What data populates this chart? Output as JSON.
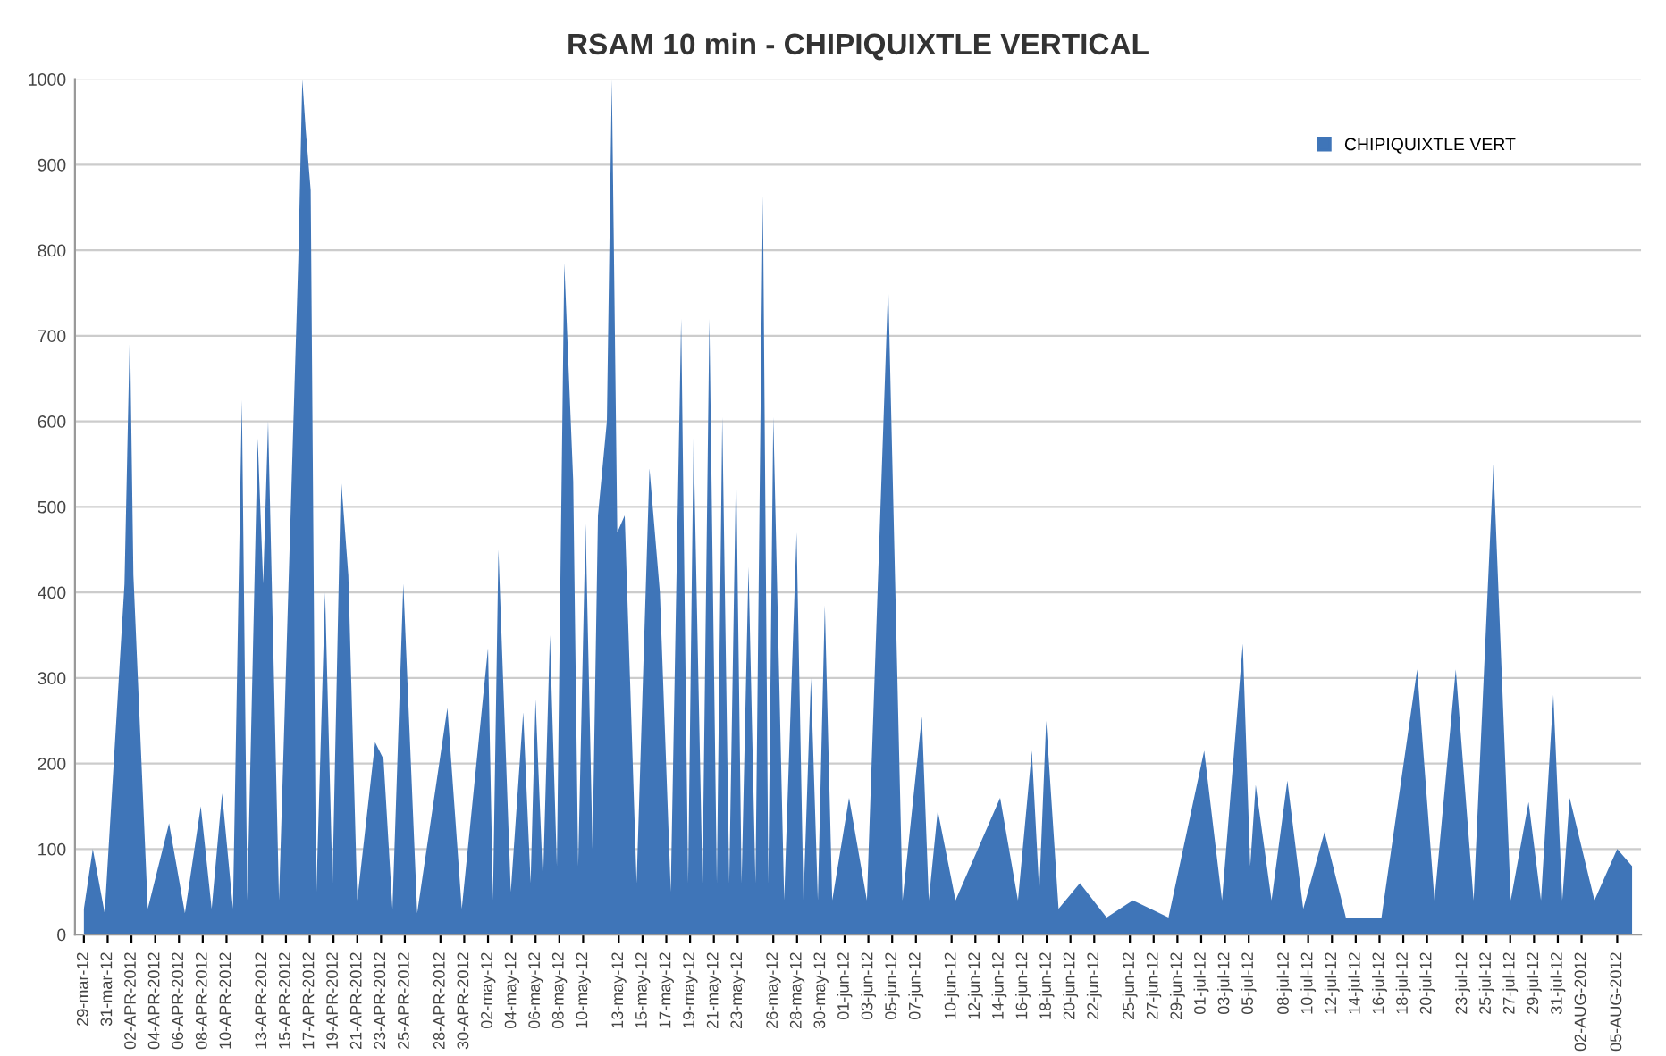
{
  "chart_data": {
    "type": "area",
    "title": "RSAM 10 min - CHIPIQUIXTLE VERTICAL",
    "xlim": [
      "2012-03-28T06:00",
      "2012-08-07T00:00"
    ],
    "ylim": [
      0,
      1000
    ],
    "yticks": [
      0,
      100,
      200,
      300,
      400,
      500,
      600,
      700,
      800,
      900,
      1000
    ],
    "xticks": [
      {
        "value": "2012-03-29",
        "label": "29-mar-12"
      },
      {
        "value": "2012-03-31",
        "label": "31-mar-12"
      },
      {
        "value": "2012-04-02",
        "label": "02-APR-2012"
      },
      {
        "value": "2012-04-04",
        "label": "04-APR-2012"
      },
      {
        "value": "2012-04-06",
        "label": "06-APR-2012"
      },
      {
        "value": "2012-04-08",
        "label": "08-APR-2012"
      },
      {
        "value": "2012-04-10",
        "label": "10-APR-2012"
      },
      {
        "value": "2012-04-13",
        "label": "13-APR-2012"
      },
      {
        "value": "2012-04-15",
        "label": "15-APR-2012"
      },
      {
        "value": "2012-04-17",
        "label": "17-APR-2012"
      },
      {
        "value": "2012-04-19",
        "label": "19-APR-2012"
      },
      {
        "value": "2012-04-21",
        "label": "21-APR-2012"
      },
      {
        "value": "2012-04-23",
        "label": "23-APR-2012"
      },
      {
        "value": "2012-04-25",
        "label": "25-APR-2012"
      },
      {
        "value": "2012-04-28",
        "label": "28-APR-2012"
      },
      {
        "value": "2012-04-30",
        "label": "30-APR-2012"
      },
      {
        "value": "2012-05-02",
        "label": "02-may-12"
      },
      {
        "value": "2012-05-04",
        "label": "04-may-12"
      },
      {
        "value": "2012-05-06",
        "label": "06-may-12"
      },
      {
        "value": "2012-05-08",
        "label": "08-may-12"
      },
      {
        "value": "2012-05-10",
        "label": "10-may-12"
      },
      {
        "value": "2012-05-13",
        "label": "13-may-12"
      },
      {
        "value": "2012-05-15",
        "label": "15-may-12"
      },
      {
        "value": "2012-05-17",
        "label": "17-may-12"
      },
      {
        "value": "2012-05-19",
        "label": "19-may-12"
      },
      {
        "value": "2012-05-21",
        "label": "21-may-12"
      },
      {
        "value": "2012-05-23",
        "label": "23-may-12"
      },
      {
        "value": "2012-05-26",
        "label": "26-may-12"
      },
      {
        "value": "2012-05-28",
        "label": "28-may-12"
      },
      {
        "value": "2012-05-30",
        "label": "30-may-12"
      },
      {
        "value": "2012-06-01",
        "label": "01-jun-12"
      },
      {
        "value": "2012-06-03",
        "label": "03-jun-12"
      },
      {
        "value": "2012-06-05",
        "label": "05-jun-12"
      },
      {
        "value": "2012-06-07",
        "label": "07-jun-12"
      },
      {
        "value": "2012-06-10",
        "label": "10-jun-12"
      },
      {
        "value": "2012-06-12",
        "label": "12-jun-12"
      },
      {
        "value": "2012-06-14",
        "label": "14-jun-12"
      },
      {
        "value": "2012-06-16",
        "label": "16-jun-12"
      },
      {
        "value": "2012-06-18",
        "label": "18-jun-12"
      },
      {
        "value": "2012-06-20",
        "label": "20-jun-12"
      },
      {
        "value": "2012-06-22",
        "label": "22-jun-12"
      },
      {
        "value": "2012-06-25",
        "label": "25-jun-12"
      },
      {
        "value": "2012-06-27",
        "label": "27-jun-12"
      },
      {
        "value": "2012-06-29",
        "label": "29-jun-12"
      },
      {
        "value": "2012-07-01",
        "label": "01-jul-12"
      },
      {
        "value": "2012-07-03",
        "label": "03-jul-12"
      },
      {
        "value": "2012-07-05",
        "label": "05-jul-12"
      },
      {
        "value": "2012-07-08",
        "label": "08-jul-12"
      },
      {
        "value": "2012-07-10",
        "label": "10-jul-12"
      },
      {
        "value": "2012-07-12",
        "label": "12-jul-12"
      },
      {
        "value": "2012-07-14",
        "label": "14-jul-12"
      },
      {
        "value": "2012-07-16",
        "label": "16-jul-12"
      },
      {
        "value": "2012-07-18",
        "label": "18-jul-12"
      },
      {
        "value": "2012-07-20",
        "label": "20-jul-12"
      },
      {
        "value": "2012-07-23",
        "label": "23-jul-12"
      },
      {
        "value": "2012-07-25",
        "label": "25-jul-12"
      },
      {
        "value": "2012-07-27",
        "label": "27-jul-12"
      },
      {
        "value": "2012-07-29",
        "label": "29-jul-12"
      },
      {
        "value": "2012-07-31",
        "label": "31-jul-12"
      },
      {
        "value": "2012-08-02",
        "label": "02-AUG-2012"
      },
      {
        "value": "2012-08-05",
        "label": "05-AUG-2012"
      }
    ],
    "grid": "y",
    "legend": "top right",
    "series": [
      {
        "name": "CHIPIQUIXTLE VERT",
        "color": "#3f75b8",
        "x": [
          "2012-03-29T00:00",
          "2012-03-29T18:00",
          "2012-03-30T18:00",
          "2012-04-01T10:00",
          "2012-04-01T21:00",
          "2012-04-02T04:00",
          "2012-04-03T09:00",
          "2012-04-05T04:00",
          "2012-04-06T12:00",
          "2012-04-07T20:00",
          "2012-04-08T18:00",
          "2012-04-09T15:00",
          "2012-04-10T13:00",
          "2012-04-11T07:00",
          "2012-04-11T18:00",
          "2012-04-12T15:00",
          "2012-04-13T02:00",
          "2012-04-13T12:00",
          "2012-04-14T10:00",
          "2012-04-16T01:00",
          "2012-04-16T09:00",
          "2012-04-16T16:00",
          "2012-04-17T02:00",
          "2012-04-17T13:00",
          "2012-04-18T07:00",
          "2012-04-18T22:00",
          "2012-04-19T15:00",
          "2012-04-20T06:00",
          "2012-04-21T00:00",
          "2012-04-22T12:00",
          "2012-04-23T05:00",
          "2012-04-23T23:00",
          "2012-04-24T21:00",
          "2012-04-26T01:00",
          "2012-04-28T14:00",
          "2012-04-29T19:00",
          "2012-05-02T00:00",
          "2012-05-02T10:00",
          "2012-05-02T21:00",
          "2012-05-03T22:00",
          "2012-05-04T23:00",
          "2012-05-05T14:00",
          "2012-05-06T00:00",
          "2012-05-06T15:00",
          "2012-05-07T05:00",
          "2012-05-07T19:00",
          "2012-05-08T10:00",
          "2012-05-09T04:00",
          "2012-05-09T14:00",
          "2012-05-10T05:00",
          "2012-05-10T19:00",
          "2012-05-11T06:00",
          "2012-05-12T00:00",
          "2012-05-12T10:00",
          "2012-05-12T21:00",
          "2012-05-13T12:00",
          "2012-05-14T12:00",
          "2012-05-15T14:00",
          "2012-05-16T11:00",
          "2012-05-17T09:00",
          "2012-05-18T06:00",
          "2012-05-18T20:00",
          "2012-05-19T07:00",
          "2012-05-20T01:00",
          "2012-05-20T15:00",
          "2012-05-21T06:00",
          "2012-05-21T17:00",
          "2012-05-22T07:00",
          "2012-05-22T21:00",
          "2012-05-23T08:00",
          "2012-05-23T22:00",
          "2012-05-24T12:00",
          "2012-05-25T03:00",
          "2012-05-25T14:00",
          "2012-05-26T00:00",
          "2012-05-26T22:00",
          "2012-05-27T23:00",
          "2012-05-28T13:00",
          "2012-05-29T04:00",
          "2012-05-29T18:00",
          "2012-05-30T08:00",
          "2012-05-30T23:00",
          "2012-06-01T09:00",
          "2012-06-02T21:00",
          "2012-06-04T16:00",
          "2012-06-05T21:00",
          "2012-06-07T12:00",
          "2012-06-08T02:00",
          "2012-06-08T20:00",
          "2012-06-10T08:00",
          "2012-06-14T02:00",
          "2012-06-15T14:00",
          "2012-06-16T18:00",
          "2012-06-17T09:00",
          "2012-06-17T23:00",
          "2012-06-19T00:00",
          "2012-06-20T19:00",
          "2012-06-23T01:00",
          "2012-06-25T06:00",
          "2012-06-28T06:00",
          "2012-07-01T06:00",
          "2012-07-02T18:00",
          "2012-07-04T12:00",
          "2012-07-05T03:00",
          "2012-07-05T14:00",
          "2012-07-06T22:00",
          "2012-07-08T06:00",
          "2012-07-09T14:00",
          "2012-07-11T09:00",
          "2012-07-13T04:00",
          "2012-07-16T04:00",
          "2012-07-19T04:00",
          "2012-07-20T15:00",
          "2012-07-22T10:00",
          "2012-07-23T22:00",
          "2012-07-25T14:00",
          "2012-07-27T01:00",
          "2012-07-28T13:00",
          "2012-07-29T14:00",
          "2012-07-30T15:00",
          "2012-07-31T09:00",
          "2012-08-01T00:00",
          "2012-08-03T02:00",
          "2012-08-05T00:00",
          "2012-08-06T06:00"
        ],
        "values": [
          30,
          100,
          25,
          410,
          710,
          420,
          30,
          130,
          25,
          150,
          30,
          165,
          30,
          625,
          40,
          580,
          410,
          600,
          40,
          790,
          1000,
          940,
          870,
          40,
          400,
          60,
          535,
          420,
          40,
          225,
          205,
          30,
          410,
          25,
          265,
          30,
          335,
          40,
          450,
          50,
          260,
          60,
          275,
          60,
          350,
          80,
          785,
          530,
          80,
          480,
          100,
          490,
          600,
          1000,
          470,
          490,
          60,
          545,
          400,
          50,
          720,
          60,
          580,
          60,
          720,
          60,
          605,
          60,
          550,
          60,
          430,
          60,
          865,
          60,
          605,
          40,
          470,
          40,
          300,
          40,
          385,
          40,
          160,
          40,
          760,
          40,
          255,
          40,
          145,
          40,
          160,
          40,
          215,
          50,
          250,
          30,
          60,
          20,
          40,
          20,
          215,
          40,
          340,
          80,
          175,
          40,
          180,
          30,
          120,
          20,
          20,
          310,
          40,
          310,
          40,
          550,
          40,
          155,
          40,
          280,
          40,
          160,
          40,
          100,
          80
        ]
      }
    ]
  }
}
